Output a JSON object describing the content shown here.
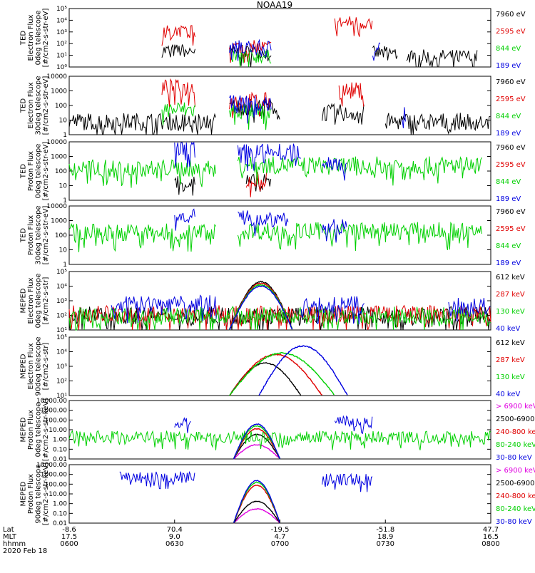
{
  "page_title": "NOAA19",
  "colors": {
    "black": "#000000",
    "red": "#e00000",
    "green": "#00d000",
    "blue": "#0000e0",
    "magenta": "#e000e0"
  },
  "chart_data": [
    {
      "type": "line",
      "instrument": "TED",
      "particle": "electron",
      "ylabel_lines": [
        "TED",
        "Electron Flux",
        "0deg telescope",
        "[#/cm2-s-str-eV]"
      ],
      "yscale": "log",
      "ylim": [
        1,
        100000
      ],
      "yticks": [
        "10⁰",
        "10¹",
        "10²",
        "10³",
        "10⁴",
        "10⁵"
      ],
      "series": [
        {
          "name": "7960 eV",
          "color": "black",
          "label_color": "black",
          "bursts": [
            [
              0.22,
              0.3,
              1.4
            ],
            [
              0.38,
              0.48,
              1.3
            ],
            [
              0.72,
              0.78,
              1.2
            ],
            [
              0.8,
              0.97,
              0.9
            ]
          ]
        },
        {
          "name": "2595 eV",
          "color": "red",
          "label_color": "red",
          "bursts": [
            [
              0.22,
              0.3,
              3.0
            ],
            [
              0.38,
              0.48,
              1.7
            ],
            [
              0.63,
              0.72,
              3.8
            ]
          ]
        },
        {
          "name": "844 eV",
          "color": "green",
          "label_color": "green",
          "bursts": [
            [
              0.38,
              0.48,
              0.9
            ]
          ]
        },
        {
          "name": "189 eV",
          "color": "blue",
          "label_color": "blue",
          "bursts": [
            [
              0.38,
              0.48,
              1.7
            ],
            [
              0.72,
              0.74,
              1.8
            ]
          ]
        }
      ]
    },
    {
      "type": "line",
      "instrument": "TED",
      "particle": "electron",
      "ylabel_lines": [
        "TED",
        "Electron Flux",
        "30deg telescope",
        "[#/cm2-s-str-eV]"
      ],
      "yscale": "log",
      "ylim": [
        1,
        10000
      ],
      "yticks": [
        "1",
        "10",
        "100",
        "1000",
        "10000"
      ],
      "series": [
        {
          "name": "7960 eV",
          "color": "black",
          "label_color": "black",
          "bursts": [
            [
              0.0,
              0.35,
              0.9
            ],
            [
              0.38,
              0.5,
              1.9
            ],
            [
              0.6,
              0.7,
              1.5
            ],
            [
              0.75,
              1.0,
              0.9
            ]
          ]
        },
        {
          "name": "2595 eV",
          "color": "red",
          "label_color": "red",
          "bursts": [
            [
              0.22,
              0.3,
              3.2
            ],
            [
              0.38,
              0.48,
              2.3
            ],
            [
              0.64,
              0.7,
              3.0
            ]
          ]
        },
        {
          "name": "844 eV",
          "color": "green",
          "label_color": "green",
          "bursts": [
            [
              0.22,
              0.3,
              1.7
            ],
            [
              0.38,
              0.48,
              1.6
            ]
          ]
        },
        {
          "name": "189 eV",
          "color": "blue",
          "label_color": "blue",
          "bursts": [
            [
              0.38,
              0.48,
              2.1
            ],
            [
              0.79,
              0.8,
              1.5
            ]
          ]
        }
      ]
    },
    {
      "type": "line",
      "instrument": "TED",
      "particle": "proton",
      "ylabel_lines": [
        "TED",
        "Proton Flux",
        "0deg telescope",
        "[#/cm2-s-str-eV]"
      ],
      "yscale": "log",
      "ylim": [
        1,
        10000
      ],
      "yticks": [
        "1",
        "10",
        "100",
        "1000",
        "10000"
      ],
      "series": [
        {
          "name": "7960 eV",
          "color": "black",
          "label_color": "black",
          "bursts": [
            [
              0.25,
              0.3,
              1.2
            ],
            [
              0.42,
              0.48,
              1.2
            ]
          ]
        },
        {
          "name": "2595 eV",
          "color": "red",
          "label_color": "red",
          "bursts": [
            [
              0.42,
              0.47,
              1.4
            ]
          ]
        },
        {
          "name": "844 eV",
          "color": "green",
          "label_color": "green",
          "bursts": [
            [
              0.0,
              0.35,
              2.2
            ],
            [
              0.4,
              0.98,
              2.4
            ]
          ]
        },
        {
          "name": "189 eV",
          "color": "blue",
          "label_color": "blue",
          "bursts": [
            [
              0.25,
              0.3,
              3.6
            ],
            [
              0.4,
              0.55,
              3.3
            ],
            [
              0.6,
              0.66,
              2.6
            ]
          ]
        }
      ]
    },
    {
      "type": "line",
      "instrument": "TED",
      "particle": "proton",
      "ylabel_lines": [
        "TED",
        "Proton Flux",
        "30deg telescope",
        "[#/cm2-s-str-eV]"
      ],
      "yscale": "log",
      "ylim": [
        1,
        10000
      ],
      "yticks": [
        "1",
        "10",
        "100",
        "1000",
        "10000"
      ],
      "series": [
        {
          "name": "7960 eV",
          "color": "black",
          "label_color": "black",
          "bursts": []
        },
        {
          "name": "2595 eV",
          "color": "red",
          "label_color": "red",
          "bursts": []
        },
        {
          "name": "844 eV",
          "color": "green",
          "label_color": "green",
          "bursts": [
            [
              0.0,
              0.35,
              2.2
            ],
            [
              0.4,
              0.98,
              2.3
            ]
          ]
        },
        {
          "name": "189 eV",
          "color": "blue",
          "label_color": "blue",
          "bursts": [
            [
              0.25,
              0.3,
              3.4
            ],
            [
              0.4,
              0.52,
              3.2
            ],
            [
              0.6,
              0.66,
              2.5
            ]
          ]
        }
      ]
    },
    {
      "type": "line",
      "instrument": "MEPED",
      "particle": "electron",
      "ylabel_lines": [
        "MEPED",
        "Electron Flux",
        "0deg telescope",
        "[#/cm2-s-str]"
      ],
      "yscale": "log",
      "ylim": [
        10,
        100000
      ],
      "yticks": [
        "10¹",
        "10²",
        "10³",
        "10⁴",
        "10⁵"
      ],
      "series": [
        {
          "name": "612 keV",
          "color": "black",
          "label_color": "black",
          "bursts": [
            [
              0.0,
              1.0,
              2.0
            ]
          ],
          "arc": [
            0.38,
            0.53,
            4.4
          ]
        },
        {
          "name": "287 keV",
          "color": "red",
          "label_color": "red",
          "bursts": [
            [
              0.0,
              1.0,
              2.1
            ]
          ],
          "arc": [
            0.38,
            0.53,
            4.3
          ]
        },
        {
          "name": "130 keV",
          "color": "green",
          "label_color": "green",
          "bursts": [
            [
              0.0,
              1.0,
              2.0
            ]
          ],
          "arc": [
            0.38,
            0.53,
            4.2
          ]
        },
        {
          "name": "40 keV",
          "color": "blue",
          "label_color": "blue",
          "bursts": [
            [
              0.1,
              0.35,
              2.8
            ],
            [
              0.55,
              0.7,
              2.7
            ],
            [
              0.9,
              1.0,
              2.6
            ]
          ],
          "arc": [
            0.38,
            0.53,
            4.1
          ]
        }
      ]
    },
    {
      "type": "line",
      "instrument": "MEPED",
      "particle": "electron",
      "ylabel_lines": [
        "MEPED",
        "Electron Flux",
        "90deg telescope",
        "[#/cm2-s-str]"
      ],
      "yscale": "log",
      "ylim": [
        10,
        100000
      ],
      "yticks": [
        "10¹",
        "10²",
        "10³",
        "10⁴",
        "10⁵"
      ],
      "series": [
        {
          "name": "612 keV",
          "color": "black",
          "label_color": "black",
          "bursts": [],
          "arc": [
            0.38,
            0.55,
            3.3
          ]
        },
        {
          "name": "287 keV",
          "color": "red",
          "label_color": "red",
          "bursts": [],
          "arc": [
            0.38,
            0.6,
            3.9
          ]
        },
        {
          "name": "130 keV",
          "color": "green",
          "label_color": "green",
          "bursts": [],
          "arc": [
            0.38,
            0.63,
            4.0
          ]
        },
        {
          "name": "40 keV",
          "color": "blue",
          "label_color": "blue",
          "bursts": [],
          "arc": [
            0.45,
            0.66,
            4.5
          ]
        }
      ]
    },
    {
      "type": "line",
      "instrument": "MEPED",
      "particle": "proton",
      "ylabel_lines": [
        "MEPED",
        "Proton Flux",
        "0deg telescope",
        "[#/cm2-s-str-keV]"
      ],
      "yscale": "log",
      "ylim": [
        0.01,
        10000
      ],
      "yticks": [
        "0.01",
        "0.10",
        "1.00",
        "10.00",
        "100.00",
        "1000.00",
        "10000.00"
      ],
      "series": [
        {
          "name": "> 6900 keV",
          "color": "magenta",
          "label_color": "magenta",
          "bursts": [],
          "arc": [
            0.39,
            0.5,
            -0.5
          ]
        },
        {
          "name": "2500-6900",
          "color": "black",
          "label_color": "black",
          "bursts": [],
          "arc": [
            0.39,
            0.5,
            0.6
          ]
        },
        {
          "name": "240-800 keV",
          "color": "red",
          "label_color": "red",
          "bursts": [],
          "arc": [
            0.39,
            0.5,
            1.2
          ]
        },
        {
          "name": "80-240 keV",
          "color": "green",
          "label_color": "green",
          "bursts": [
            [
              0.0,
              1.0,
              0.3
            ]
          ],
          "arc": [
            0.39,
            0.5,
            1.5
          ]
        },
        {
          "name": "30-80 keV",
          "color": "blue",
          "label_color": "blue",
          "bursts": [
            [
              0.25,
              0.29,
              1.8
            ],
            [
              0.63,
              0.72,
              1.8
            ]
          ],
          "arc": [
            0.39,
            0.5,
            1.7
          ]
        }
      ]
    },
    {
      "type": "line",
      "instrument": "MEPED",
      "particle": "proton",
      "ylabel_lines": [
        "MEPED",
        "Proton Flux",
        "90deg telescope",
        "[#/cm2-s-str-keV]"
      ],
      "yscale": "log",
      "ylim": [
        0.01,
        10000
      ],
      "yticks": [
        "0.01",
        "0.10",
        "1.00",
        "10.00",
        "100.00",
        "1000.00",
        "10000.00"
      ],
      "series": [
        {
          "name": "> 6900 keV",
          "color": "magenta",
          "label_color": "magenta",
          "bursts": [],
          "arc": [
            0.39,
            0.5,
            -0.5
          ]
        },
        {
          "name": "2500-6900",
          "color": "black",
          "label_color": "black",
          "bursts": [],
          "arc": [
            0.39,
            0.5,
            0.3
          ]
        },
        {
          "name": "240-800 keV",
          "color": "red",
          "label_color": "red",
          "bursts": [],
          "arc": [
            0.39,
            0.5,
            2.0
          ]
        },
        {
          "name": "80-240 keV",
          "color": "green",
          "label_color": "green",
          "bursts": [],
          "arc": [
            0.39,
            0.5,
            2.3
          ]
        },
        {
          "name": "30-80 keV",
          "color": "blue",
          "label_color": "blue",
          "bursts": [
            [
              0.12,
              0.3,
              2.7
            ],
            [
              0.6,
              0.72,
              2.5
            ]
          ],
          "arc": [
            0.39,
            0.5,
            2.5
          ]
        }
      ]
    }
  ],
  "xaxis": {
    "rows": [
      {
        "label": "Lat",
        "values": [
          "-8.6",
          "70.4",
          "-19.5",
          "-51.8",
          "47.7"
        ]
      },
      {
        "label": "MLT",
        "values": [
          "17.5",
          "9.0",
          "4.7",
          "18.9",
          "16.5"
        ]
      },
      {
        "label": "hhmm",
        "values": [
          "0600",
          "0630",
          "0700",
          "0730",
          "0800"
        ]
      }
    ],
    "date": "2020 Feb 18"
  }
}
